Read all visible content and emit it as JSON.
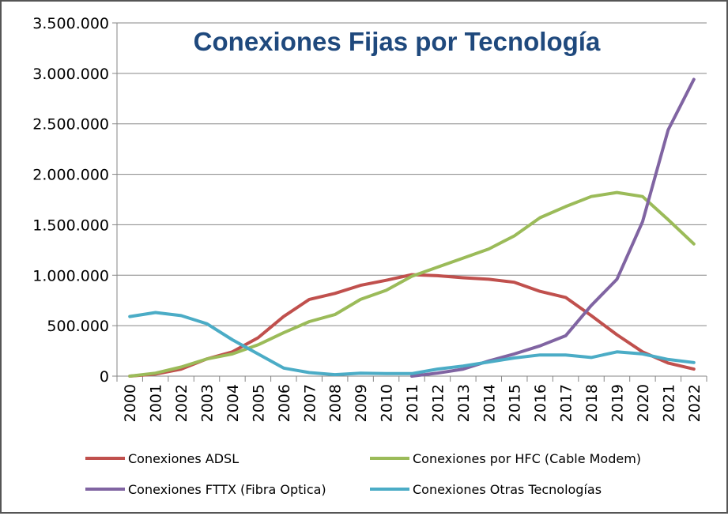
{
  "chart_data": {
    "type": "line",
    "title": "Conexiones Fijas por Tecnología",
    "xlabel": "",
    "ylabel": "",
    "ylim": [
      0,
      3500000
    ],
    "yticks": [
      0,
      500000,
      1000000,
      1500000,
      2000000,
      2500000,
      3000000,
      3500000
    ],
    "ytick_labels": [
      "0",
      "500.000",
      "1.000.000",
      "1.500.000",
      "2.000.000",
      "2.500.000",
      "3.000.000",
      "3.500.000"
    ],
    "grid": "horizontal",
    "legend_placement": "bottom",
    "categories": [
      "2000",
      "2001",
      "2002",
      "2003",
      "2004",
      "2005",
      "2006",
      "2007",
      "2008",
      "2009",
      "2010",
      "2011",
      "2012",
      "2013",
      "2014",
      "2015",
      "2016",
      "2017",
      "2018",
      "2019",
      "2020",
      "2021",
      "2022"
    ],
    "series": [
      {
        "name": "Conexiones ADSL",
        "color": "#C0504D",
        "values": [
          0,
          20000,
          70000,
          170000,
          240000,
          380000,
          590000,
          760000,
          820000,
          900000,
          950000,
          1005000,
          995000,
          975000,
          960000,
          930000,
          840000,
          780000,
          600000,
          410000,
          240000,
          130000,
          70000
        ]
      },
      {
        "name": "Conexiones por HFC (Cable Modem)",
        "color": "#9BBB59",
        "values": [
          0,
          30000,
          90000,
          170000,
          220000,
          310000,
          430000,
          540000,
          610000,
          760000,
          850000,
          990000,
          1080000,
          1170000,
          1260000,
          1390000,
          1570000,
          1680000,
          1780000,
          1820000,
          1780000,
          1550000,
          1310000
        ]
      },
      {
        "name": "Conexiones FTTX (Fibra Optica)",
        "color": "#8064A2",
        "values": [
          null,
          null,
          null,
          null,
          null,
          null,
          null,
          null,
          null,
          null,
          null,
          0,
          30000,
          70000,
          150000,
          220000,
          300000,
          400000,
          700000,
          960000,
          1530000,
          2440000,
          2940000
        ]
      },
      {
        "name": "Conexiones Otras Tecnologías",
        "color": "#4BACC6",
        "values": [
          590000,
          630000,
          600000,
          520000,
          360000,
          220000,
          80000,
          35000,
          15000,
          30000,
          25000,
          25000,
          70000,
          100000,
          140000,
          180000,
          210000,
          210000,
          185000,
          240000,
          220000,
          165000,
          135000
        ]
      }
    ]
  }
}
